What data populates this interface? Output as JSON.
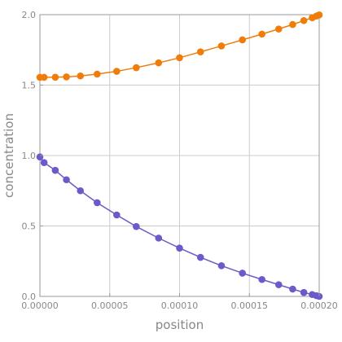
{
  "chart_data": {
    "type": "line",
    "title": "",
    "xlabel": "position",
    "ylabel": "concentration",
    "xlim": [
      0,
      0.0002
    ],
    "ylim": [
      0,
      2.0
    ],
    "grid": true,
    "legend": "none",
    "x_ticks": [
      {
        "value": 0,
        "label": "0.00000"
      },
      {
        "value": 5e-05,
        "label": "0.00005"
      },
      {
        "value": 0.0001,
        "label": "0.00010"
      },
      {
        "value": 0.00015,
        "label": "0.00015"
      },
      {
        "value": 0.0002,
        "label": "0.00020"
      }
    ],
    "y_ticks": [
      {
        "value": 0,
        "label": "0.0"
      },
      {
        "value": 0.5,
        "label": "0.5"
      },
      {
        "value": 1.0,
        "label": "1.0"
      },
      {
        "value": 1.5,
        "label": "1.5"
      },
      {
        "value": 2.0,
        "label": "2.0"
      }
    ],
    "series": [
      {
        "color": "#f07d0a",
        "x": [
          0,
          3e-06,
          1.1e-05,
          1.9e-05,
          2.9e-05,
          4.1e-05,
          5.5e-05,
          6.9e-05,
          8.5e-05,
          0.0001,
          0.000115,
          0.00013,
          0.000145,
          0.000159,
          0.000171,
          0.000181,
          0.000189,
          0.000195,
          0.000198,
          0.0002
        ],
        "y": [
          1.555,
          1.555,
          1.556,
          1.558,
          1.565,
          1.578,
          1.598,
          1.624,
          1.658,
          1.694,
          1.736,
          1.778,
          1.821,
          1.862,
          1.898,
          1.93,
          1.958,
          1.978,
          1.99,
          1.998
        ]
      },
      {
        "color": "#6b5ac9",
        "x": [
          0,
          3e-06,
          1.1e-05,
          1.9e-05,
          2.9e-05,
          4.1e-05,
          5.5e-05,
          6.9e-05,
          8.5e-05,
          0.0001,
          0.000115,
          0.00013,
          0.000145,
          0.000159,
          0.000171,
          0.000181,
          0.000189,
          0.000195,
          0.000198,
          0.0002
        ],
        "y": [
          0.99,
          0.95,
          0.895,
          0.828,
          0.75,
          0.665,
          0.578,
          0.496,
          0.414,
          0.343,
          0.277,
          0.218,
          0.165,
          0.12,
          0.083,
          0.052,
          0.028,
          0.013,
          0.005,
          0.0
        ]
      }
    ]
  }
}
